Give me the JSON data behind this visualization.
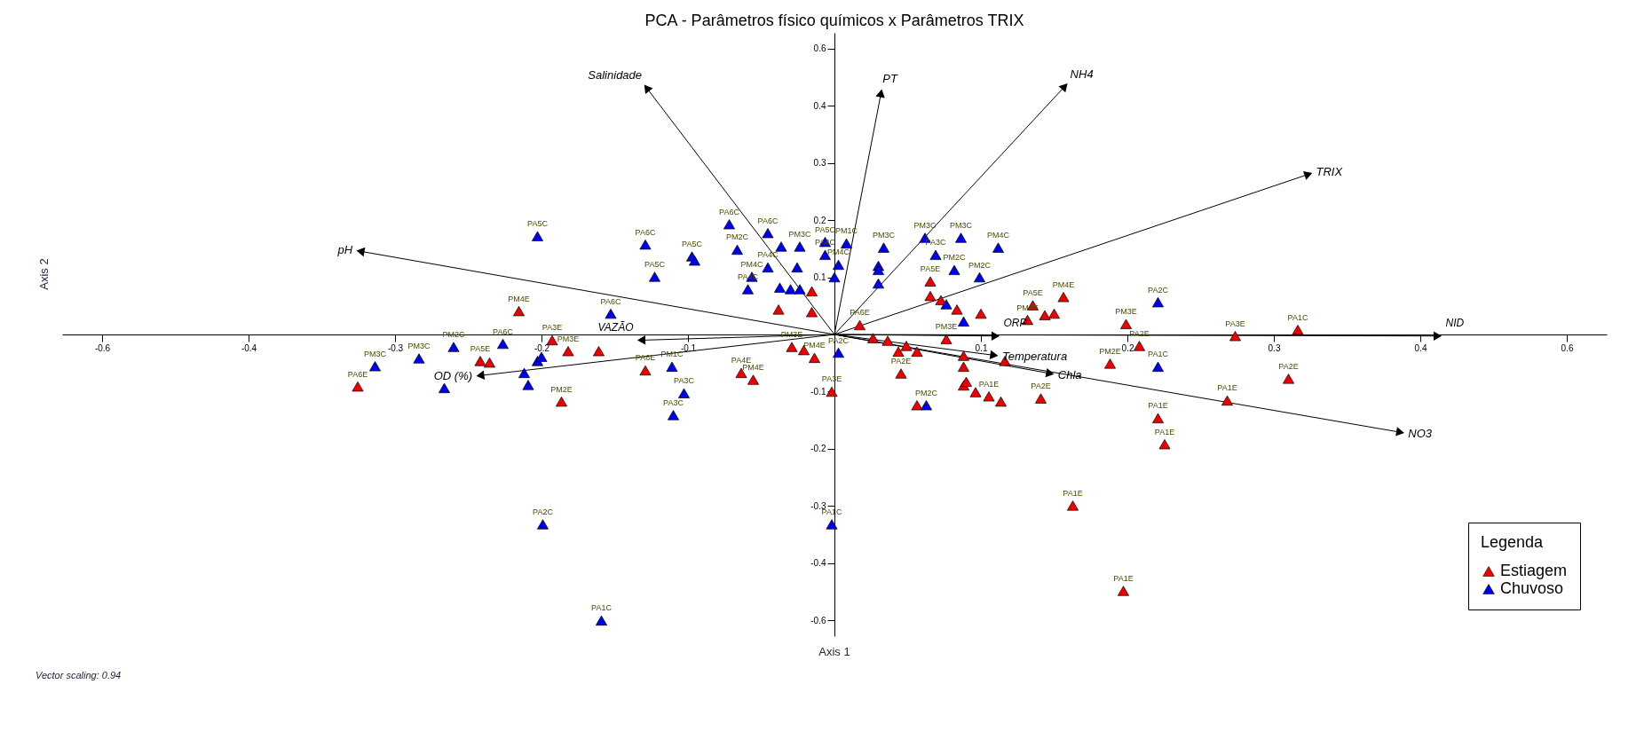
{
  "chart_data": {
    "type": "scatter",
    "title": "PCA - Parâmetros físico químicos x Parâmetros TRIX",
    "xlabel": "Axis 1",
    "ylabel": "Axis 2",
    "xlim": [
      -0.58,
      0.58
    ],
    "ylim": [
      -0.58,
      0.58
    ],
    "xticks": [
      {
        "value": -0.55,
        "label": "-0.6"
      },
      {
        "value": -0.44,
        "label": "-0.4"
      },
      {
        "value": -0.33,
        "label": "-0.3"
      },
      {
        "value": -0.22,
        "label": "-0.2"
      },
      {
        "value": -0.11,
        "label": "-0.1"
      },
      {
        "value": 0.11,
        "label": "0.1"
      },
      {
        "value": 0.22,
        "label": "0.2"
      },
      {
        "value": 0.33,
        "label": "0.3"
      },
      {
        "value": 0.44,
        "label": "0.4"
      },
      {
        "value": 0.55,
        "label": "0.6"
      }
    ],
    "yticks": [
      {
        "value": -0.55,
        "label": "-0.6"
      },
      {
        "value": -0.44,
        "label": "-0.4"
      },
      {
        "value": -0.33,
        "label": "-0.3"
      },
      {
        "value": -0.22,
        "label": "-0.2"
      },
      {
        "value": -0.11,
        "label": "-0.1"
      },
      {
        "value": 0.11,
        "label": "0.1"
      },
      {
        "value": 0.22,
        "label": "0.2"
      },
      {
        "value": 0.33,
        "label": "0.3"
      },
      {
        "value": 0.44,
        "label": "0.4"
      },
      {
        "value": 0.55,
        "label": "0.6"
      }
    ],
    "legend": "bottom right",
    "legend_title": "Legenda",
    "annotations": [
      "Vector scaling: 0.94"
    ],
    "series": [
      {
        "name": "Estiagem",
        "marker": "triangle",
        "color": "#f00000",
        "x": [
          -0.358,
          -0.266,
          -0.259,
          -0.237,
          -0.212,
          -0.2,
          -0.177,
          -0.205,
          -0.142,
          -0.07,
          -0.061,
          -0.032,
          -0.023,
          -0.015,
          -0.042,
          -0.017,
          -0.017,
          -0.002,
          0.019,
          0.029,
          0.04,
          0.048,
          0.054,
          0.062,
          0.05,
          0.062,
          0.072,
          0.072,
          0.08,
          0.092,
          0.11,
          0.084,
          0.097,
          0.097,
          0.097,
          0.099,
          0.106,
          0.116,
          0.125,
          0.128,
          0.155,
          0.145,
          0.149,
          0.158,
          0.165,
          0.172,
          0.219,
          0.229,
          0.207,
          0.301,
          0.348,
          0.341,
          0.295,
          0.243,
          0.248,
          0.179,
          0.217
        ],
        "values": [
          -0.1,
          -0.051,
          -0.054,
          0.045,
          -0.011,
          -0.032,
          -0.032,
          -0.129,
          -0.069,
          -0.074,
          -0.087,
          -0.024,
          -0.03,
          -0.045,
          0.048,
          0.043,
          0.083,
          -0.11,
          0.018,
          -0.007,
          -0.012,
          -0.033,
          -0.022,
          -0.033,
          -0.075,
          -0.136,
          0.102,
          0.074,
          0.066,
          0.048,
          0.04,
          -0.009,
          -0.041,
          -0.062,
          -0.098,
          -0.091,
          -0.111,
          -0.119,
          -0.129,
          -0.051,
          -0.123,
          0.028,
          0.056,
          0.037,
          0.04,
          0.072,
          0.02,
          -0.022,
          -0.056,
          -0.003,
          0.009,
          -0.085,
          -0.127,
          -0.161,
          -0.211,
          -0.329,
          -0.493
        ],
        "value_labels": [
          "PA6E",
          "PA5E",
          null,
          "PM4E",
          "PA3E",
          "PM3E",
          null,
          "PM2E",
          "PA6E",
          "PA4E",
          "PM4E",
          "PM3E",
          null,
          "PM4E",
          null,
          null,
          null,
          "PA3E",
          "PA6E",
          null,
          null,
          null,
          null,
          null,
          "PA2E",
          null,
          "PA5E",
          null,
          null,
          null,
          null,
          "PM3E",
          null,
          null,
          null,
          null,
          null,
          "PA1E",
          null,
          null,
          "PA2E",
          "PM2E",
          "PA5E",
          null,
          null,
          "PM4E",
          "PM3E",
          "PA2E",
          "PM2E",
          "PA3E",
          "PA1C",
          "PA2E",
          "PA1E",
          "PA1E",
          "PA1E",
          "PA1E",
          "PA1E"
        ]
      },
      {
        "name": "Chuvoso",
        "marker": "triangle",
        "color": "#0000f0",
        "x": [
          -0.223,
          -0.142,
          -0.135,
          -0.107,
          -0.105,
          -0.079,
          -0.073,
          -0.05,
          -0.04,
          -0.026,
          -0.05,
          -0.062,
          -0.065,
          -0.041,
          -0.033,
          -0.026,
          -0.028,
          -0.007,
          -0.007,
          0.009,
          0.003,
          0.0,
          0.037,
          0.033,
          0.033,
          0.033,
          0.068,
          0.076,
          0.095,
          0.123,
          0.09,
          0.109,
          0.097,
          0.084,
          0.243,
          0.243,
          0.003,
          -0.002,
          -0.219,
          -0.175,
          -0.286,
          -0.249,
          -0.345,
          -0.312,
          -0.293,
          -0.168,
          -0.233,
          -0.23,
          -0.223,
          -0.22,
          -0.122,
          -0.113,
          -0.121,
          0.069
        ],
        "values": [
          0.189,
          0.173,
          0.111,
          0.15,
          0.142,
          0.212,
          0.163,
          0.195,
          0.169,
          0.169,
          0.129,
          0.111,
          0.087,
          0.09,
          0.087,
          0.087,
          0.129,
          0.178,
          0.153,
          0.175,
          0.134,
          0.11,
          0.167,
          0.132,
          0.124,
          0.098,
          0.186,
          0.153,
          0.186,
          0.167,
          0.124,
          0.11,
          0.025,
          0.058,
          0.062,
          -0.062,
          -0.035,
          -0.365,
          -0.365,
          -0.55,
          -0.024,
          -0.018,
          -0.061,
          -0.046,
          -0.103,
          0.04,
          -0.074,
          -0.097,
          -0.051,
          -0.043,
          -0.062,
          -0.113,
          -0.155,
          -0.136
        ],
        "value_labels": [
          "PA5C",
          "PA6C",
          "PA5C",
          "PA5C",
          null,
          "PA6C",
          "PM2C",
          "PA6C",
          null,
          "PM3C",
          "PA4C",
          "PM4C",
          "PA4C",
          null,
          null,
          null,
          null,
          "PA5C",
          "PA4C",
          "PM1C",
          "PM4C",
          null,
          "PM3C",
          null,
          null,
          null,
          "PM3C",
          "PA3C",
          "PM3C",
          "PM4C",
          "PM2C",
          "PM2C",
          null,
          null,
          "PA2C",
          "PA1C",
          "PA2C",
          "PA1C",
          "PA2C",
          "PA1C",
          "PM2C",
          "PA6C",
          "PM3C",
          "PM3C",
          null,
          "PA6C",
          null,
          null,
          null,
          null,
          "PM1C",
          "PA3C",
          "PA3C",
          "PM2C"
        ]
      },
      {
        "name": "Salinidade",
        "type": "line",
        "color": "#000000",
        "x": [
          0,
          -0.141
        ],
        "values": [
          0,
          0.474
        ]
      },
      {
        "name": "PT",
        "type": "line",
        "color": "#000000",
        "x": [
          0,
          0.035
        ],
        "values": [
          0,
          0.464
        ]
      },
      {
        "name": "NH4",
        "type": "line",
        "color": "#000000",
        "x": [
          0,
          0.173
        ],
        "values": [
          0,
          0.477
        ]
      },
      {
        "name": "TRIX",
        "type": "line",
        "color": "#000000",
        "x": [
          0,
          0.356
        ],
        "values": [
          0,
          0.308
        ]
      },
      {
        "name": "pH",
        "type": "line",
        "color": "#000000",
        "x": [
          0,
          -0.356
        ],
        "values": [
          0,
          0.16
        ]
      },
      {
        "name": "NID",
        "type": "line",
        "color": "#000000",
        "x": [
          0,
          0.453
        ],
        "values": [
          0,
          -0.003
        ]
      },
      {
        "name": "VAZÃO",
        "type": "line",
        "color": "#000000",
        "x": [
          0,
          -0.145
        ],
        "values": [
          0,
          -0.011
        ]
      },
      {
        "name": "OD (%)",
        "type": "line",
        "color": "#000000",
        "x": [
          0,
          -0.266
        ],
        "values": [
          0,
          -0.079
        ]
      },
      {
        "name": "ORP",
        "type": "line",
        "color": "#000000",
        "x": [
          0,
          0.121
        ],
        "values": [
          0,
          -0.003
        ]
      },
      {
        "name": "Temperatura",
        "type": "line",
        "color": "#000000",
        "x": [
          0,
          0.12
        ],
        "values": [
          0,
          -0.04
        ]
      },
      {
        "name": "Chla",
        "type": "line",
        "color": "#000000",
        "x": [
          0,
          0.162
        ],
        "values": [
          0,
          -0.075
        ]
      },
      {
        "name": "NO3",
        "type": "line",
        "color": "#000000",
        "x": [
          0,
          0.425
        ],
        "values": [
          0,
          -0.188
        ]
      }
    ]
  }
}
